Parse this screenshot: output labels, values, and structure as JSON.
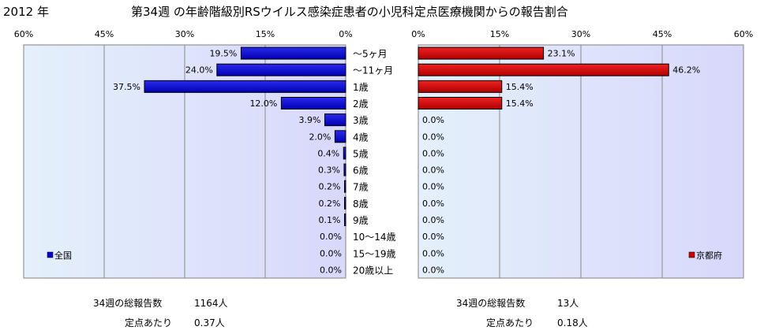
{
  "header": {
    "year": "2012 年",
    "title": "第34週 の年齢階級別RSウイルス感染症患者の小児科定点医療機関からの報告割合"
  },
  "chart_data": [
    {
      "type": "bar",
      "orientation": "horizontal",
      "direction": "right-to-left",
      "legend": "全国",
      "legend_position": "bottom-left",
      "xlim": [
        0,
        60
      ],
      "xticks": [
        "60%",
        "45%",
        "30%",
        "15%",
        "0%"
      ],
      "grid": true,
      "bar_color": "#0000cc",
      "categories": [
        "～5ヶ月",
        "～11ヶ月",
        "1歳",
        "2歳",
        "3歳",
        "4歳",
        "5歳",
        "6歳",
        "7歳",
        "8歳",
        "9歳",
        "10～14歳",
        "15～19歳",
        "20歳以上"
      ],
      "values": [
        19.5,
        24.0,
        37.5,
        12.0,
        3.9,
        2.0,
        0.4,
        0.3,
        0.2,
        0.2,
        0.1,
        0.0,
        0.0,
        0.0
      ],
      "labels": [
        "19.5%",
        "24.0%",
        "37.5%",
        "12.0%",
        "3.9%",
        "2.0%",
        "0.4%",
        "0.3%",
        "0.2%",
        "0.2%",
        "0.1%",
        "0.0%",
        "0.0%",
        "0.0%"
      ]
    },
    {
      "type": "bar",
      "orientation": "horizontal",
      "direction": "left-to-right",
      "legend": "京都府",
      "legend_position": "bottom-right",
      "xlim": [
        0,
        60
      ],
      "xticks": [
        "0%",
        "15%",
        "30%",
        "45%",
        "60%"
      ],
      "grid": true,
      "bar_color": "#cc0000",
      "categories": [
        "～5ヶ月",
        "～11ヶ月",
        "1歳",
        "2歳",
        "3歳",
        "4歳",
        "5歳",
        "6歳",
        "7歳",
        "8歳",
        "9歳",
        "10～14歳",
        "15～19歳",
        "20歳以上"
      ],
      "values": [
        23.1,
        46.2,
        15.4,
        15.4,
        0,
        0,
        0,
        0,
        0,
        0,
        0,
        0,
        0,
        0
      ],
      "labels": [
        "23.1%",
        "46.2%",
        "15.4%",
        "15.4%",
        "0.0%",
        "0.0%",
        "0.0%",
        "0.0%",
        "0.0%",
        "0.0%",
        "0.0%",
        "0.0%",
        "0.0%",
        "0.0%"
      ]
    }
  ],
  "summary": {
    "national": {
      "total_label": "34週の総報告数",
      "total_value": "1164人",
      "per_label": "定点あたり",
      "per_value": "0.37人"
    },
    "kyoto": {
      "total_label": "34週の総報告数",
      "total_value": "13人",
      "per_label": "定点あたり",
      "per_value": "0.18人"
    }
  }
}
